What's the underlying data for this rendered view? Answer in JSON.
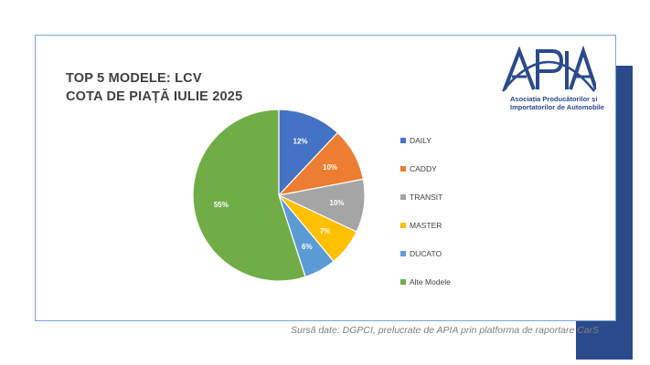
{
  "title": {
    "line1": "TOP 5 MODELE: LCV",
    "line2": "COTA DE PIAȚĂ IULIE 2025"
  },
  "logo": {
    "brand": "APIA",
    "caption_line1": "Asociația Producătorilor și",
    "caption_line2": "Importatorilor de Automobile",
    "color": "#2b4a8b"
  },
  "source": "Sursă date: DGPCI, prelucrate de APIA prin platforma de raportare CarS",
  "colors": {
    "accent_band": "#2b4a8b",
    "card_border": "#7aa6d6"
  },
  "chart_data": {
    "type": "pie",
    "title": "TOP 5 MODELE: LCV COTA DE PIAȚĂ IULIE 2025",
    "legend_position": "right",
    "slices": [
      {
        "label": "DAILY",
        "value": 12,
        "text": "12%",
        "color": "#4472c4"
      },
      {
        "label": "CADDY",
        "value": 10,
        "text": "10%",
        "color": "#ed7d31"
      },
      {
        "label": "TRANSIT",
        "value": 10,
        "text": "10%",
        "color": "#a5a5a5"
      },
      {
        "label": "MASTER",
        "value": 7,
        "text": "7%",
        "color": "#ffc000"
      },
      {
        "label": "DUCATO",
        "value": 6,
        "text": "6%",
        "color": "#5b9bd5"
      },
      {
        "label": "Alte Modele",
        "value": 55,
        "text": "55%",
        "color": "#70ad47"
      }
    ]
  }
}
